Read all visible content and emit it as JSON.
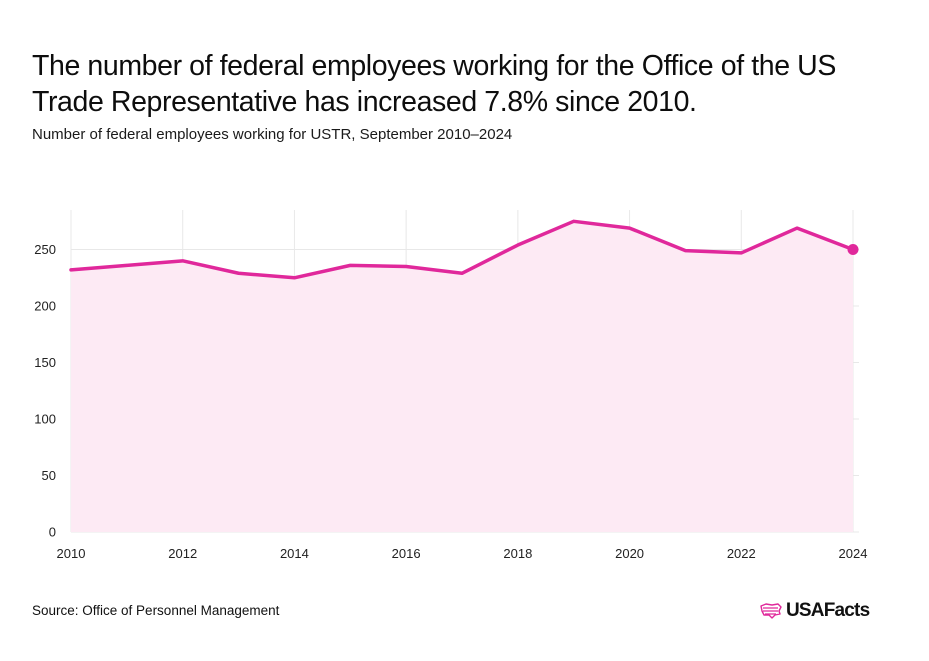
{
  "header": {
    "title": "The number of federal employees working for the Office of the US Trade Representative has increased 7.8% since 2010.",
    "subtitle": "Number of federal employees working for USTR, September 2010–2024"
  },
  "footer": {
    "source": "Source: Office of Personnel Management",
    "logo_text": "USAFacts"
  },
  "colors": {
    "line": "#e0289b",
    "area": "#fdeaf4",
    "grid": "#e8e8e8"
  },
  "chart_data": {
    "type": "area",
    "title": "The number of federal employees working for the Office of the US Trade Representative has increased 7.8% since 2010.",
    "subtitle": "Number of federal employees working for USTR, September 2010–2024",
    "x": [
      2010,
      2011,
      2012,
      2013,
      2014,
      2015,
      2016,
      2017,
      2018,
      2019,
      2020,
      2021,
      2022,
      2023,
      2024
    ],
    "series": [
      {
        "values": [
          232,
          236,
          240,
          229,
          225,
          236,
          235,
          229,
          254,
          275,
          269,
          249,
          247,
          269,
          250
        ]
      }
    ],
    "xlim": [
      2010,
      2024
    ],
    "ylim": [
      0,
      285
    ],
    "xticks": [
      2010,
      2012,
      2014,
      2016,
      2018,
      2020,
      2022,
      2024
    ],
    "yticks": [
      0,
      50,
      100,
      150,
      200,
      250
    ],
    "grid": true,
    "highlight_last_point": true
  }
}
